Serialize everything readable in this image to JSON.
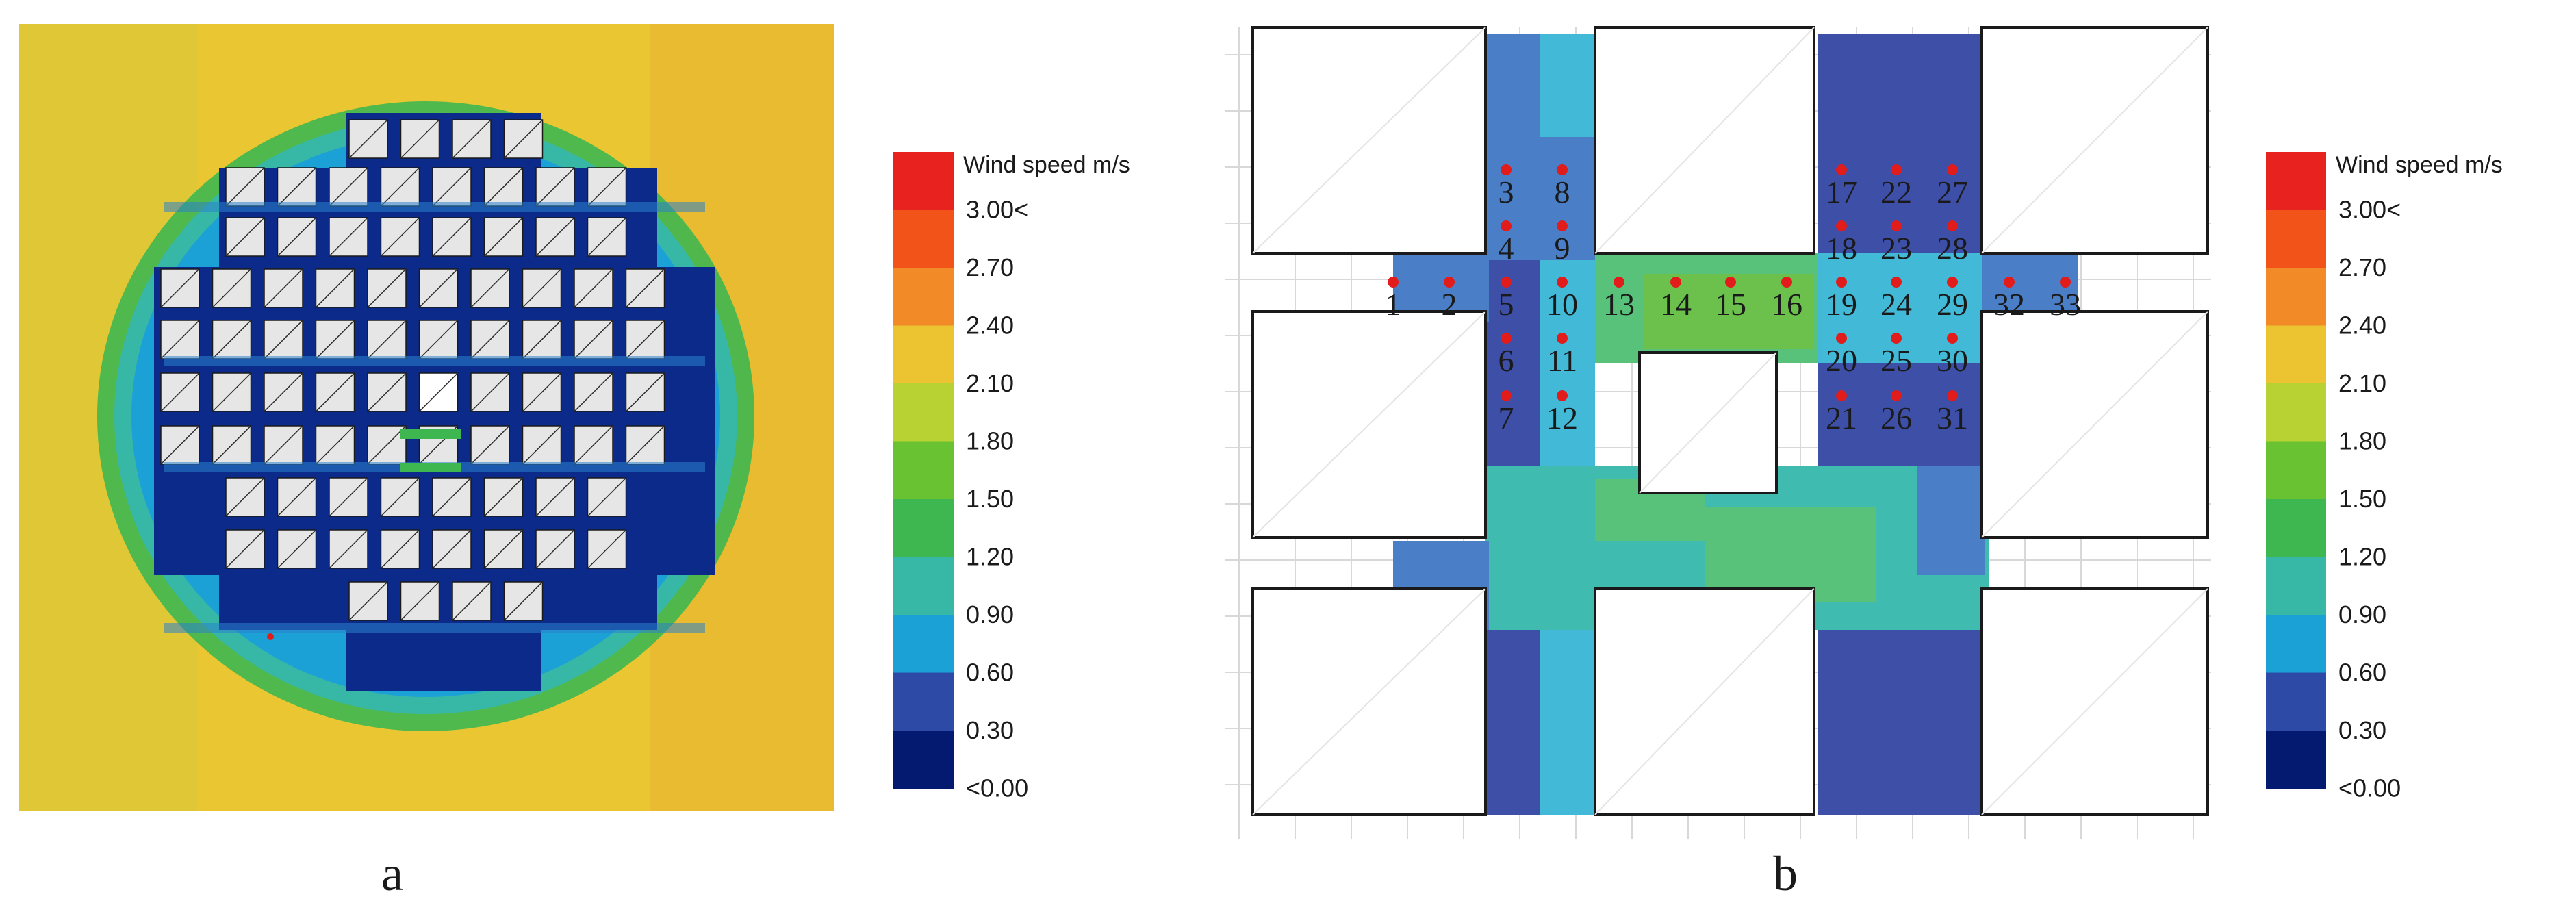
{
  "panels": [
    {
      "id": "a",
      "caption": "a"
    },
    {
      "id": "b",
      "caption": "b"
    }
  ],
  "legend": {
    "title": "Wind speed m/s",
    "labels": [
      "3.00<",
      "2.70",
      "2.40",
      "2.10",
      "1.80",
      "1.50",
      "1.20",
      "0.90",
      "0.60",
      "0.30",
      "<0.00"
    ],
    "colors": [
      "#e8231f",
      "#f25318",
      "#f28a27",
      "#ecc331",
      "#b7d232",
      "#69c232",
      "#3fb751",
      "#37b8a7",
      "#1ba1d6",
      "#2d4aa6",
      "#041970"
    ]
  },
  "probe_points": [
    "1",
    "2",
    "3",
    "4",
    "5",
    "6",
    "7",
    "8",
    "9",
    "10",
    "11",
    "12",
    "13",
    "14",
    "15",
    "16",
    "17",
    "18",
    "19",
    "20",
    "21",
    "22",
    "23",
    "24",
    "25",
    "26",
    "27",
    "28",
    "29",
    "30",
    "31",
    "32",
    "33"
  ],
  "colors": {
    "probe": "#e21b1b",
    "building_fill_a": "#e6e6e6",
    "building_stroke_b": "#1a1a1a"
  }
}
